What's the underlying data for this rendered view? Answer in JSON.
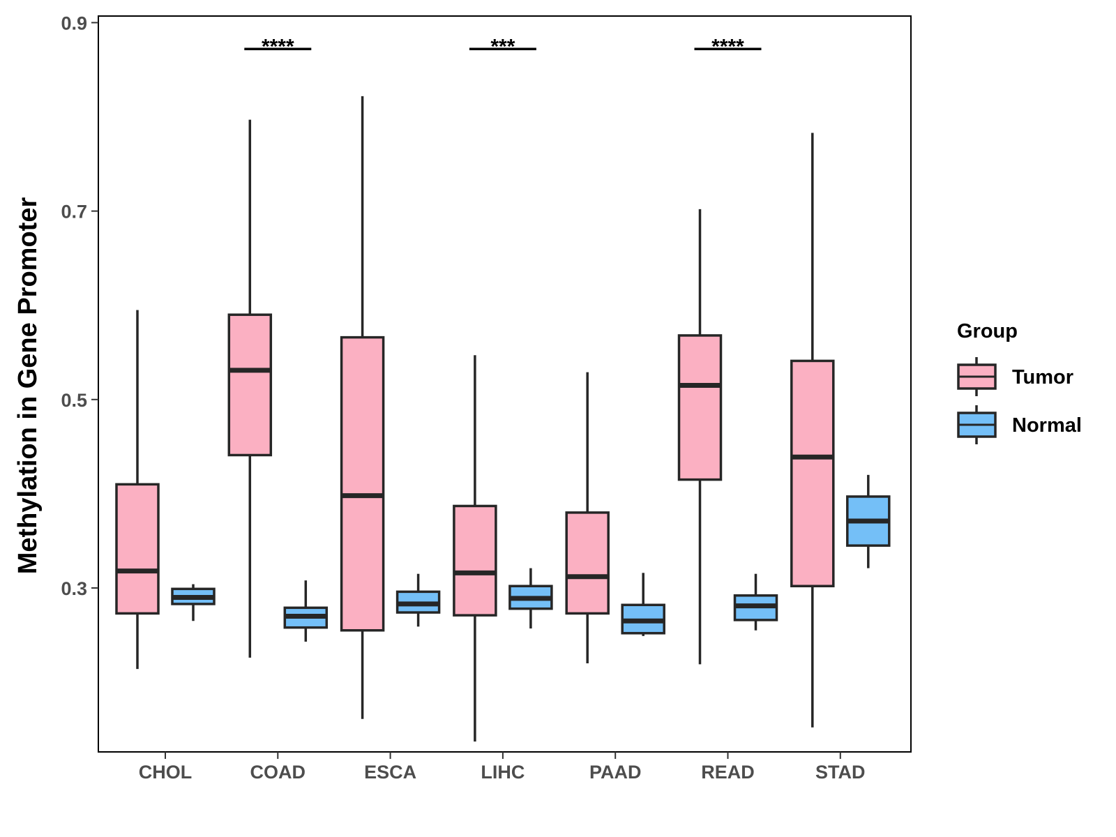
{
  "chart_data": {
    "type": "boxplot",
    "title": "",
    "xlabel": "",
    "ylabel": "Methylation in Gene Promoter",
    "ylim": [
      0.126,
      0.907
    ],
    "yticks": [
      0.3,
      0.5,
      0.7,
      0.9
    ],
    "ytick_labels": [
      "0.3",
      "0.5",
      "0.7",
      "0.9"
    ],
    "categories": [
      "CHOL",
      "COAD",
      "ESCA",
      "LIHC",
      "PAAD",
      "READ",
      "STAD"
    ],
    "grid": false,
    "legend": {
      "title": "Group",
      "placement": "right",
      "entries": [
        {
          "name": "Tumor",
          "color": "#fbb0c2"
        },
        {
          "name": "Normal",
          "color": "#74bff7"
        }
      ]
    },
    "series": [
      {
        "name": "Tumor",
        "color": "#fbb0c2",
        "boxes": [
          {
            "category": "CHOL",
            "min": 0.214,
            "q1": 0.273,
            "median": 0.318,
            "q3": 0.41,
            "max": 0.595
          },
          {
            "category": "COAD",
            "min": 0.226,
            "q1": 0.441,
            "median": 0.531,
            "q3": 0.59,
            "max": 0.797
          },
          {
            "category": "ESCA",
            "min": 0.161,
            "q1": 0.255,
            "median": 0.398,
            "q3": 0.566,
            "max": 0.822
          },
          {
            "category": "LIHC",
            "min": 0.137,
            "q1": 0.271,
            "median": 0.316,
            "q3": 0.387,
            "max": 0.547
          },
          {
            "category": "PAAD",
            "min": 0.22,
            "q1": 0.273,
            "median": 0.312,
            "q3": 0.38,
            "max": 0.529
          },
          {
            "category": "READ",
            "min": 0.219,
            "q1": 0.415,
            "median": 0.515,
            "q3": 0.568,
            "max": 0.702
          },
          {
            "category": "STAD",
            "min": 0.152,
            "q1": 0.302,
            "median": 0.439,
            "q3": 0.541,
            "max": 0.783
          }
        ]
      },
      {
        "name": "Normal",
        "color": "#74bff7",
        "boxes": [
          {
            "category": "CHOL",
            "min": 0.265,
            "q1": 0.283,
            "median": 0.29,
            "q3": 0.299,
            "max": 0.304
          },
          {
            "category": "COAD",
            "min": 0.243,
            "q1": 0.258,
            "median": 0.27,
            "q3": 0.279,
            "max": 0.308
          },
          {
            "category": "ESCA",
            "min": 0.259,
            "q1": 0.274,
            "median": 0.283,
            "q3": 0.296,
            "max": 0.315
          },
          {
            "category": "LIHC",
            "min": 0.257,
            "q1": 0.278,
            "median": 0.289,
            "q3": 0.302,
            "max": 0.321
          },
          {
            "category": "PAAD",
            "min": 0.249,
            "q1": 0.252,
            "median": 0.265,
            "q3": 0.282,
            "max": 0.316
          },
          {
            "category": "READ",
            "min": 0.255,
            "q1": 0.266,
            "median": 0.281,
            "q3": 0.292,
            "max": 0.315
          },
          {
            "category": "STAD",
            "min": 0.321,
            "q1": 0.345,
            "median": 0.371,
            "q3": 0.397,
            "max": 0.42
          }
        ]
      }
    ],
    "annotations": [
      {
        "category": "COAD",
        "text": "****",
        "y": 0.872
      },
      {
        "category": "LIHC",
        "text": "***",
        "y": 0.872
      },
      {
        "category": "READ",
        "text": "****",
        "y": 0.872
      }
    ]
  }
}
